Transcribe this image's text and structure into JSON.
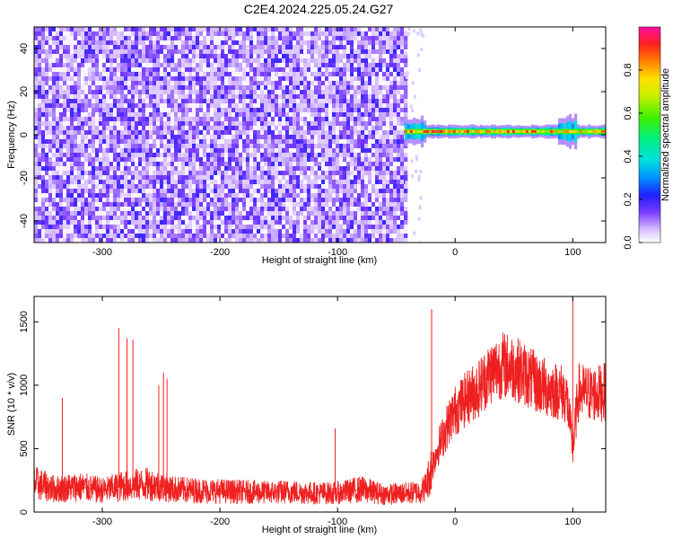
{
  "title": "C2E4.2024.225.05.24.G27",
  "chart_data": [
    {
      "type": "heatmap",
      "xlabel": "Height of straight line (km)",
      "ylabel": "Frequency (Hz)",
      "xlim": [
        -358,
        128
      ],
      "ylim": [
        -50,
        50
      ],
      "xticks": [
        -300,
        -200,
        -100,
        0,
        100
      ],
      "xtick_labels": [
        "-300",
        "-200",
        "-100",
        "0",
        "100"
      ],
      "yticks": [
        -40,
        -20,
        0,
        20,
        40
      ],
      "ytick_labels": [
        "-40",
        "-20",
        "0",
        "20",
        "40"
      ],
      "description_regions": [
        {
          "x_range": [
            -358,
            -43
          ],
          "freq_range": [
            -50,
            50
          ],
          "amplitude_range": [
            0.0,
            0.25
          ],
          "pattern": "noise"
        },
        {
          "x_range": [
            -43,
            128
          ],
          "center_freq": 1.5,
          "amplitude_range": [
            0.3,
            0.95
          ],
          "pattern": "line"
        }
      ],
      "colorbar": {
        "label": "Normalized spectral amplitude",
        "range": [
          0,
          1
        ],
        "ticks": [
          0.0,
          0.2,
          0.4,
          0.6,
          0.8
        ],
        "tick_labels": [
          "0.0",
          "0.2",
          "0.4",
          "0.6",
          "0.8"
        ]
      }
    },
    {
      "type": "line",
      "xlabel": "Height of straight line (km)",
      "ylabel": "SNR (10 * v/v)",
      "xlim": [
        -358,
        128
      ],
      "ylim": [
        0,
        1700
      ],
      "xticks": [
        -300,
        -200,
        -100,
        0,
        100
      ],
      "xtick_labels": [
        "-300",
        "-200",
        "-100",
        "0",
        "100"
      ],
      "yticks": [
        0,
        500,
        1000,
        1500
      ],
      "ytick_labels": [
        "0",
        "500",
        "1000",
        "1500"
      ],
      "series": [
        {
          "color": "#ee2020",
          "x": [
            -358,
            -340,
            -320,
            -300,
            -280,
            -260,
            -240,
            -220,
            -200,
            -180,
            -160,
            -140,
            -120,
            -100,
            -80,
            -60,
            -40,
            -30,
            -25,
            -20,
            -15,
            -10,
            -5,
            0,
            10,
            20,
            30,
            40,
            50,
            60,
            70,
            80,
            90,
            95,
            100,
            105,
            110,
            120,
            128
          ],
          "y": [
            230,
            180,
            200,
            170,
            210,
            220,
            180,
            170,
            165,
            160,
            155,
            160,
            150,
            150,
            180,
            140,
            150,
            160,
            200,
            350,
            500,
            600,
            720,
            800,
            900,
            980,
            1100,
            1160,
            1140,
            1080,
            1010,
            970,
            950,
            900,
            500,
            950,
            940,
            930,
            950
          ]
        }
      ],
      "spikes": [
        {
          "x": -334,
          "y": 900
        },
        {
          "x": -286,
          "y": 1450
        },
        {
          "x": -279,
          "y": 1370
        },
        {
          "x": -274,
          "y": 1360
        },
        {
          "x": -252,
          "y": 1000
        },
        {
          "x": -248,
          "y": 1100
        },
        {
          "x": -245,
          "y": 1050
        },
        {
          "x": -102,
          "y": 660
        },
        {
          "x": -20,
          "y": 1600
        },
        {
          "x": 100,
          "y": 1700
        }
      ]
    }
  ]
}
